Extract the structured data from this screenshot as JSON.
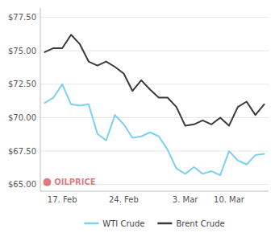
{
  "chart_data": {
    "type": "line",
    "categories": [
      null,
      null,
      "17. Feb",
      null,
      null,
      null,
      null,
      null,
      null,
      "24. Feb",
      null,
      null,
      null,
      null,
      null,
      null,
      "3. Mar",
      null,
      null,
      null,
      null,
      "10. Mar",
      null,
      null,
      null,
      null
    ],
    "series": [
      {
        "name": "WTI Crude",
        "color": "#7ecff0",
        "values": [
          71.1,
          71.5,
          72.5,
          71.0,
          70.9,
          71.0,
          68.8,
          68.3,
          70.2,
          69.5,
          68.5,
          68.6,
          68.9,
          68.6,
          67.6,
          66.2,
          65.8,
          66.3,
          65.8,
          66.0,
          65.7,
          67.5,
          66.8,
          66.5,
          67.2,
          67.3
        ]
      },
      {
        "name": "Brent Crude",
        "color": "#3a3a3a",
        "values": [
          74.9,
          75.2,
          75.2,
          76.2,
          75.5,
          74.2,
          73.9,
          74.2,
          73.8,
          73.3,
          72.0,
          72.8,
          72.1,
          71.5,
          71.5,
          70.8,
          69.4,
          69.5,
          69.8,
          69.5,
          70.0,
          69.4,
          70.8,
          71.2,
          70.2,
          71.0
        ]
      }
    ],
    "ylim": [
      64.5,
      78.2
    ],
    "yticks": [
      {
        "value": 65.0,
        "label": "$65.00"
      },
      {
        "value": 67.5,
        "label": "$67.50"
      },
      {
        "value": 70.0,
        "label": "$70.00"
      },
      {
        "value": 72.5,
        "label": "$72.50"
      },
      {
        "value": 75.0,
        "label": "$75.00"
      },
      {
        "value": 77.5,
        "label": "$77.50"
      }
    ],
    "grid": true,
    "legend": "bottom",
    "annotations": [
      "●",
      "OILPRICE"
    ]
  }
}
